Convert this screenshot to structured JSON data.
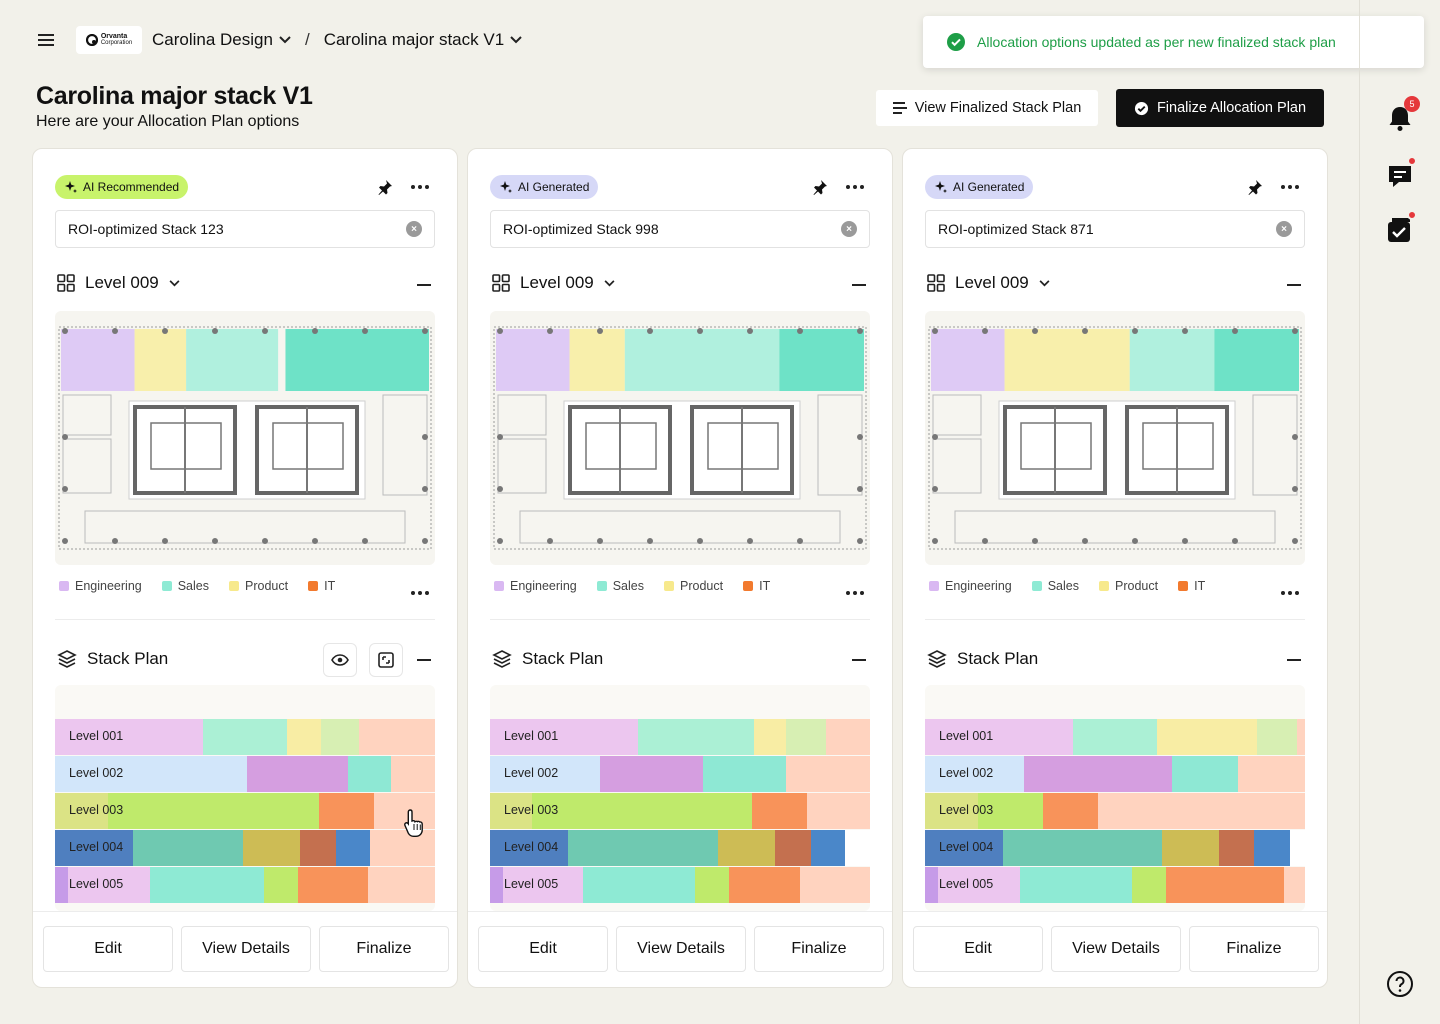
{
  "header": {
    "org_logo_name": "Orvanta",
    "org_logo_sub": "Corporation",
    "workspace": "Carolina Design",
    "project": "Carolina major stack V1",
    "title": "Carolina major stack V1",
    "subtitle": "Here are your Allocation Plan options",
    "view_finalized_label": "View Finalized Stack Plan",
    "finalize_allocation_label": "Finalize Allocation Plan"
  },
  "toast": {
    "message": "Allocation options updated as per new finalized stack plan",
    "color": "#1e9e47"
  },
  "sidebar": {
    "notification_count": "5"
  },
  "legend": [
    {
      "label": "Engineering",
      "color": "#d9b8f2"
    },
    {
      "label": "Sales",
      "color": "#8eead4"
    },
    {
      "label": "Product",
      "color": "#f7e98c"
    },
    {
      "label": "IT",
      "color": "#f27a2e"
    }
  ],
  "cards": [
    {
      "tag": "AI Recommended",
      "tag_color": "#c8f36b",
      "name": "ROI-optimized Stack 123",
      "level": "Level 009",
      "stack_title": "Stack Plan",
      "buttons": {
        "edit": "Edit",
        "details": "View Details",
        "finalize": "Finalize"
      },
      "zones": [
        [
          "#dcc5f5",
          0,
          0.2
        ],
        [
          "#f8eea3",
          0.2,
          0.34
        ],
        [
          "#a9efdb",
          0.34,
          0.59
        ],
        [
          "#5fe0c2",
          0.61,
          1.0
        ]
      ],
      "rows": [
        {
          "label": "Level 001",
          "segs": [
            [
              "#ecc6ef",
              0.39
            ],
            [
              "#abf0d5",
              0.22
            ],
            [
              "#f8eda4",
              0.09
            ],
            [
              "#d7efb3",
              0.1
            ],
            [
              "#ffd3bf",
              0.2
            ]
          ]
        },
        {
          "label": "Level 002",
          "segs": [
            [
              "#d2e6fa",
              0.505
            ],
            [
              "#d59ee0",
              0.265
            ],
            [
              "#8ee8d4",
              0.115
            ],
            [
              "#ffd3bf",
              0.115
            ]
          ]
        },
        {
          "label": "Level 003",
          "segs": [
            [
              "#dbe385",
              0.14
            ],
            [
              "#bfea6b",
              0.555
            ],
            [
              "#f8935a",
              0.145
            ],
            [
              "#ffd3bf",
              0.16
            ]
          ]
        },
        {
          "label": "Level 004",
          "segs": [
            [
              "#4f7fbf",
              0.205
            ],
            [
              "#6fc9b1",
              0.29
            ],
            [
              "#cdbc55",
              0.15
            ],
            [
              "#c4704f",
              0.095
            ],
            [
              "#4a87c9",
              0.09
            ],
            [
              "#ffd3bf",
              0.17
            ]
          ]
        },
        {
          "label": "Level 005",
          "segs": [
            [
              "#c69be8",
              0.035
            ],
            [
              "#ecc6ef",
              0.215
            ],
            [
              "#8eead4",
              0.3
            ],
            [
              "#bfea6b",
              0.09
            ],
            [
              "#f8935a",
              0.185
            ],
            [
              "#ffd3bf",
              0.175
            ]
          ]
        }
      ]
    },
    {
      "tag": "AI Generated",
      "tag_color": "#d6d8f7",
      "name": "ROI-optimized Stack 998",
      "level": "Level 009",
      "stack_title": "Stack Plan",
      "buttons": {
        "edit": "Edit",
        "details": "View Details",
        "finalize": "Finalize"
      },
      "zones": [
        [
          "#dcc5f5",
          0,
          0.2
        ],
        [
          "#f8eea3",
          0.2,
          0.35
        ],
        [
          "#a9efdb",
          0.35,
          0.77
        ],
        [
          "#5fe0c2",
          0.77,
          1.0
        ]
      ],
      "rows": [
        {
          "label": "Level 001",
          "segs": [
            [
              "#ecc6ef",
              0.39
            ],
            [
              "#abf0d5",
              0.305
            ],
            [
              "#f8eda4",
              0.085
            ],
            [
              "#d7efb3",
              0.105
            ],
            [
              "#ffd3bf",
              0.115
            ]
          ]
        },
        {
          "label": "Level 002",
          "segs": [
            [
              "#d2e6fa",
              0.29
            ],
            [
              "#d59ee0",
              0.27
            ],
            [
              "#8ee8d4",
              0.22
            ],
            [
              "#ffd3bf",
              0.22
            ]
          ]
        },
        {
          "label": "Level 003",
          "segs": [
            [
              "#dbe385",
              0.11
            ],
            [
              "#bfea6b",
              0.58
            ],
            [
              "#f8935a",
              0.145
            ],
            [
              "#ffd3bf",
              0.165
            ]
          ]
        },
        {
          "label": "Level 004",
          "segs": [
            [
              "#4f7fbf",
              0.205
            ],
            [
              "#6fc9b1",
              0.395
            ],
            [
              "#cdbc55",
              0.15
            ],
            [
              "#c4704f",
              0.095
            ],
            [
              "#4a87c9",
              0.09
            ],
            [
              "#ffffff",
              0.065
            ]
          ]
        },
        {
          "label": "Level 005",
          "segs": [
            [
              "#c69be8",
              0.035
            ],
            [
              "#ecc6ef",
              0.21
            ],
            [
              "#8eead4",
              0.295
            ],
            [
              "#bfea6b",
              0.09
            ],
            [
              "#f8935a",
              0.185
            ],
            [
              "#ffd3bf",
              0.185
            ]
          ]
        }
      ]
    },
    {
      "tag": "AI Generated",
      "tag_color": "#d6d8f7",
      "name": "ROI-optimized Stack 871",
      "level": "Level 009",
      "stack_title": "Stack Plan",
      "buttons": {
        "edit": "Edit",
        "details": "View Details",
        "finalize": "Finalize"
      },
      "zones": [
        [
          "#dcc5f5",
          0,
          0.2
        ],
        [
          "#f8eea3",
          0.2,
          0.54
        ],
        [
          "#a9efdb",
          0.54,
          0.77
        ],
        [
          "#5fe0c2",
          0.77,
          1.0
        ]
      ],
      "rows": [
        {
          "label": "Level 001",
          "segs": [
            [
              "#ecc6ef",
              0.39
            ],
            [
              "#abf0d5",
              0.22
            ],
            [
              "#f8eda4",
              0.265
            ],
            [
              "#d7efb3",
              0.105
            ],
            [
              "#ffd3bf",
              0.02
            ]
          ]
        },
        {
          "label": "Level 002",
          "segs": [
            [
              "#d2e6fa",
              0.26
            ],
            [
              "#d59ee0",
              0.39
            ],
            [
              "#8ee8d4",
              0.175
            ],
            [
              "#ffd3bf",
              0.175
            ]
          ]
        },
        {
          "label": "Level 003",
          "segs": [
            [
              "#dbe385",
              0.14
            ],
            [
              "#bfea6b",
              0.17
            ],
            [
              "#f8935a",
              0.145
            ],
            [
              "#ffd3bf",
              0.545
            ]
          ]
        },
        {
          "label": "Level 004",
          "segs": [
            [
              "#4f7fbf",
              0.205
            ],
            [
              "#6fc9b1",
              0.42
            ],
            [
              "#cdbc55",
              0.15
            ],
            [
              "#c4704f",
              0.09
            ],
            [
              "#4a87c9",
              0.095
            ],
            [
              "#ffffff",
              0.04
            ]
          ]
        },
        {
          "label": "Level 005",
          "segs": [
            [
              "#c69be8",
              0.035
            ],
            [
              "#ecc6ef",
              0.215
            ],
            [
              "#8eead4",
              0.295
            ],
            [
              "#bfea6b",
              0.09
            ],
            [
              "#f8935a",
              0.31
            ],
            [
              "#ffd3bf",
              0.055
            ]
          ]
        }
      ]
    }
  ]
}
